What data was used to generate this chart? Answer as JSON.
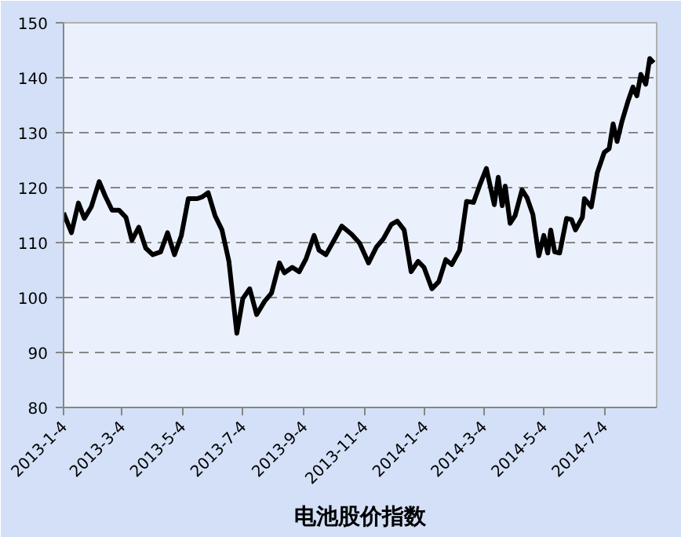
{
  "chart_data": {
    "type": "line",
    "title": "电池股价指数",
    "x": [
      "2013-01-04",
      "2013-01-12",
      "2013-01-19",
      "2013-01-25",
      "2013-02-01",
      "2013-02-09",
      "2013-02-15",
      "2013-02-22",
      "2013-03-01",
      "2013-03-08",
      "2013-03-14",
      "2013-03-21",
      "2013-03-28",
      "2013-04-04",
      "2013-04-12",
      "2013-04-19",
      "2013-04-26",
      "2013-05-03",
      "2013-05-10",
      "2013-05-19",
      "2013-05-24",
      "2013-05-30",
      "2013-06-06",
      "2013-06-13",
      "2013-06-20",
      "2013-06-28",
      "2013-07-04",
      "2013-07-11",
      "2013-07-18",
      "2013-07-26",
      "2013-08-02",
      "2013-08-10",
      "2013-08-15",
      "2013-08-23",
      "2013-08-30",
      "2013-09-06",
      "2013-09-14",
      "2013-09-19",
      "2013-09-26",
      "2013-10-05",
      "2013-10-12",
      "2013-10-22",
      "2013-10-30",
      "2013-11-08",
      "2013-11-16",
      "2013-11-23",
      "2013-12-01",
      "2013-12-07",
      "2013-12-14",
      "2013-12-21",
      "2013-12-28",
      "2014-01-03",
      "2014-01-11",
      "2014-01-18",
      "2014-01-25",
      "2014-01-31",
      "2014-02-08",
      "2014-02-15",
      "2014-02-22",
      "2014-02-28",
      "2014-03-07",
      "2014-03-15",
      "2014-03-19",
      "2014-03-23",
      "2014-03-26",
      "2014-03-31",
      "2014-04-05",
      "2014-04-12",
      "2014-04-17",
      "2014-04-23",
      "2014-04-29",
      "2014-05-04",
      "2014-05-08",
      "2014-05-11",
      "2014-05-15",
      "2014-05-20",
      "2014-05-27",
      "2014-06-01",
      "2014-06-05",
      "2014-06-12",
      "2014-06-14",
      "2014-06-21",
      "2014-06-27",
      "2014-07-04",
      "2014-07-09",
      "2014-07-13",
      "2014-07-17",
      "2014-07-22",
      "2014-07-28",
      "2014-08-02",
      "2014-08-06",
      "2014-08-10",
      "2014-08-15",
      "2014-08-19",
      "2014-08-23"
    ],
    "series": [
      {
        "color": "#000000",
        "values": [
          115.4,
          111.8,
          117.2,
          114.4,
          116.5,
          121.1,
          118.5,
          115.9,
          115.9,
          114.6,
          110.4,
          112.8,
          109.0,
          107.8,
          108.3,
          111.8,
          107.8,
          111.3,
          118.0,
          118.0,
          118.3,
          119.1,
          114.9,
          112.3,
          106.6,
          93.5,
          99.8,
          101.6,
          96.9,
          99.3,
          100.8,
          106.3,
          104.5,
          105.5,
          104.7,
          107.1,
          111.3,
          108.6,
          107.8,
          110.7,
          113.0,
          111.5,
          109.9,
          106.3,
          109.2,
          110.7,
          113.3,
          113.9,
          112.3,
          104.7,
          106.6,
          105.5,
          101.6,
          102.9,
          106.9,
          106.0,
          108.6,
          117.5,
          117.3,
          120.3,
          123.5,
          116.9,
          121.9,
          116.7,
          120.3,
          113.5,
          114.9,
          119.6,
          118.2,
          115.1,
          107.6,
          111.3,
          108.1,
          112.3,
          108.3,
          108.1,
          114.4,
          114.2,
          112.3,
          114.6,
          118.0,
          116.5,
          122.7,
          126.4,
          127.1,
          131.6,
          128.4,
          132.1,
          135.7,
          138.3,
          136.7,
          140.6,
          138.8,
          143.5,
          142.7
        ]
      }
    ],
    "xlim": [
      "2013-01-04",
      "2014-08-26"
    ],
    "xticks": [
      {
        "value": "2013-01-04",
        "label": "2013-1-4"
      },
      {
        "value": "2013-03-04",
        "label": "2013-3-4"
      },
      {
        "value": "2013-05-04",
        "label": "2013-5-4"
      },
      {
        "value": "2013-07-04",
        "label": "2013-7-4"
      },
      {
        "value": "2013-09-04",
        "label": "2013-9-4"
      },
      {
        "value": "2013-11-04",
        "label": "2013-11-4"
      },
      {
        "value": "2014-01-04",
        "label": "2014-1-4"
      },
      {
        "value": "2014-03-04",
        "label": "2014-3-4"
      },
      {
        "value": "2014-05-04",
        "label": "2014-5-4"
      },
      {
        "value": "2014-07-04",
        "label": "2014-7-4"
      }
    ],
    "ylim": [
      80,
      150
    ],
    "yticks": [
      80,
      90,
      100,
      110,
      120,
      130,
      140,
      150
    ],
    "grid": "y",
    "marker": "none",
    "line_style": "solid"
  }
}
